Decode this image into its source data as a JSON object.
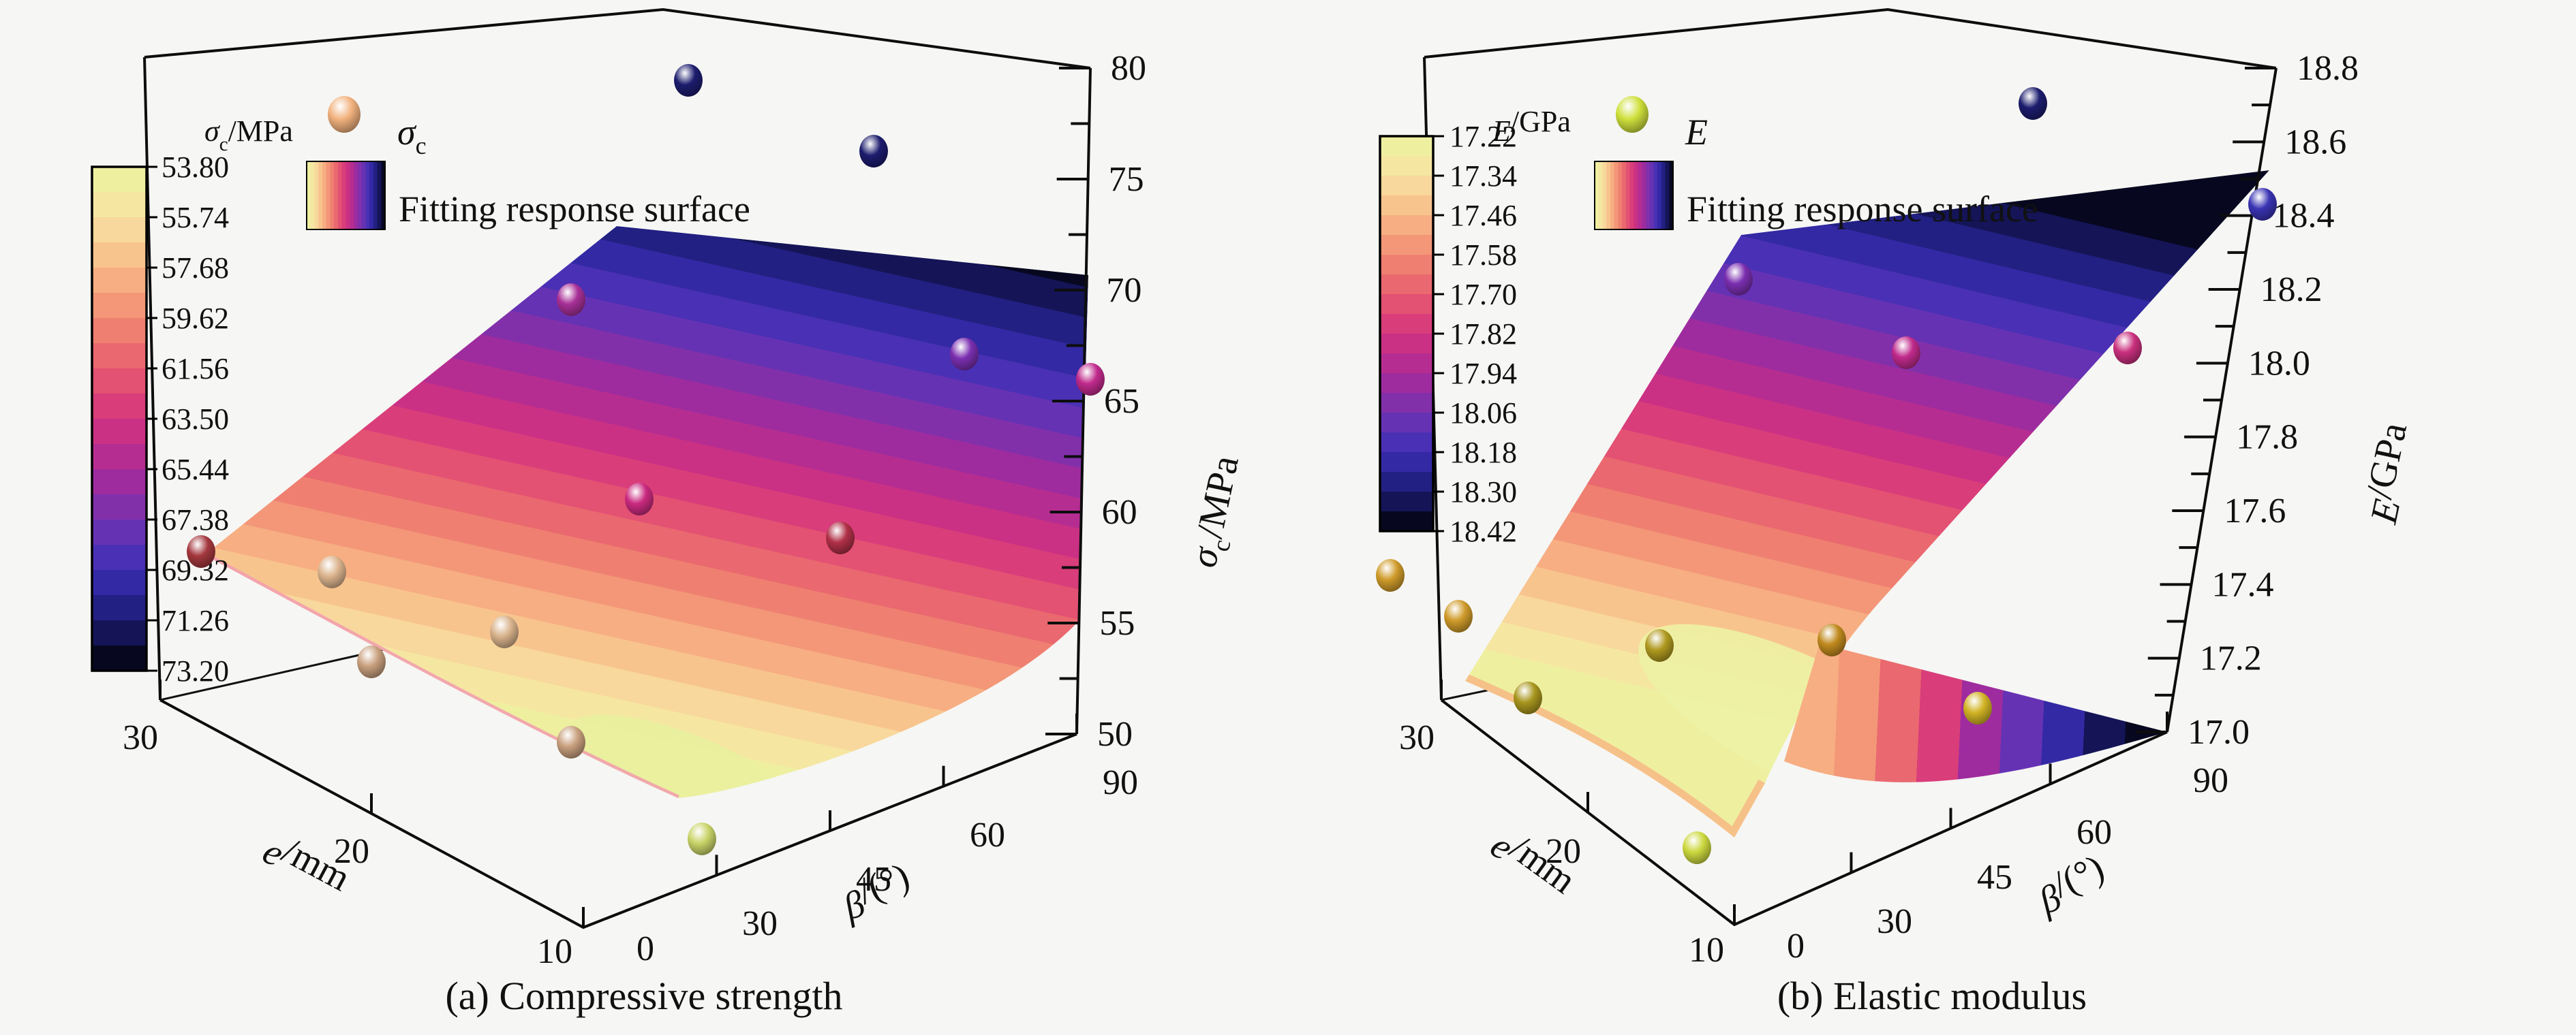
{
  "figure": {
    "background": "#f6f6f4"
  },
  "panels": [
    {
      "caption": "(a) Compressive strength",
      "legend": {
        "scatter_sym": "σ",
        "scatter_sub": "c",
        "fit_label": "Fitting response surface"
      },
      "axes": {
        "z": {
          "sym": "σ",
          "sub": "c",
          "unit": "/MPa",
          "ticks": [
            "50",
            "55",
            "60",
            "65",
            "70",
            "75",
            "80"
          ]
        },
        "beta": {
          "sym": "β",
          "unit": "/(°)",
          "ticks": [
            "0",
            "30",
            "45",
            "60",
            "90"
          ]
        },
        "e": {
          "sym": "e",
          "unit": "/mm",
          "ticks": [
            "30",
            "20",
            "10"
          ]
        }
      },
      "colorbar": {
        "labels": [
          "53.80",
          "55.74",
          "57.68",
          "59.62",
          "61.56",
          "63.50",
          "65.44",
          "67.38",
          "69.32",
          "71.26",
          "73.20"
        ]
      },
      "chart_data": {
        "type": "3d-surface-with-scatter",
        "x_beta_deg_ticks": [
          0,
          30,
          45,
          60,
          90
        ],
        "y_e_mm_ticks": [
          30,
          20,
          10
        ],
        "z_label": "σc/MPa",
        "z_range": [
          50,
          80
        ],
        "surface": {
          "name": "Fitting response surface",
          "z_min": 53.8,
          "z_max": 73.2,
          "color_levels": [
            53.8,
            55.74,
            57.68,
            59.62,
            61.56,
            63.5,
            65.44,
            67.38,
            69.32,
            71.26,
            73.2
          ],
          "shape": "valley surface: minimum ~53.8 MPa near low-mid bedding angle at front (e=10mm), rising to ~73.2 MPa (black) at beta=90"
        },
        "scatter": {
          "name": "sigma-c measured points",
          "points": [
            {
              "z_est": 69.3,
              "screen": [
                1010,
                118
              ],
              "color": "#1c1c6e"
            },
            {
              "z_est": 68.1,
              "screen": [
                1282,
                222
              ],
              "color": "#1c1c6e"
            },
            {
              "z_est": 63.4,
              "screen": [
                838,
                440
              ],
              "color": "#a83098"
            },
            {
              "z_est": 65.4,
              "screen": [
                1415,
                520
              ],
              "color": "#7b2fb0"
            },
            {
              "z_est": 66.0,
              "screen": [
                1600,
                557
              ],
              "color": "#c02a8c"
            },
            {
              "z_est": 63.5,
              "screen": [
                938,
                733
              ],
              "color": "#cb2a80"
            },
            {
              "z_est": 59.8,
              "screen": [
                1233,
                790
              ],
              "color": "#b03048"
            },
            {
              "z_est": 58.4,
              "screen": [
                295,
                810
              ],
              "color": "#a4383e"
            },
            {
              "z_est": 56.5,
              "screen": [
                487,
                840
              ],
              "color": "#dcb48e"
            },
            {
              "z_est": 55.8,
              "screen": [
                740,
                928
              ],
              "color": "#d9b38c"
            },
            {
              "z_est": 55.2,
              "screen": [
                545,
                972
              ],
              "color": "#c9a07e"
            },
            {
              "z_est": 54.6,
              "screen": [
                838,
                1090
              ],
              "color": "#c9a07e"
            },
            {
              "z_est": 53.8,
              "screen": [
                1030,
                1232
              ],
              "color": "#c9d468"
            }
          ]
        }
      }
    },
    {
      "caption": "(b) Elastic modulus",
      "legend": {
        "scatter_sym": "E",
        "scatter_sub": "",
        "fit_label": "Fitting response surface"
      },
      "axes": {
        "z": {
          "sym": "E",
          "sub": "",
          "unit": "/GPa",
          "ticks": [
            "17.0",
            "17.2",
            "17.4",
            "17.6",
            "17.8",
            "18.0",
            "18.2",
            "18.4",
            "18.6",
            "18.8"
          ]
        },
        "beta": {
          "sym": "β",
          "unit": "/(°)",
          "ticks": [
            "0",
            "30",
            "45",
            "60",
            "90"
          ]
        },
        "e": {
          "sym": "e",
          "unit": "/mm",
          "ticks": [
            "30",
            "20",
            "10"
          ]
        }
      },
      "colorbar": {
        "labels": [
          "17.22",
          "17.34",
          "17.46",
          "17.58",
          "17.70",
          "17.82",
          "17.94",
          "18.06",
          "18.18",
          "18.30",
          "18.42"
        ]
      },
      "chart_data": {
        "type": "3d-surface-with-scatter",
        "x_beta_deg_ticks": [
          0,
          30,
          45,
          60,
          90
        ],
        "y_e_mm_ticks": [
          30,
          20,
          10
        ],
        "z_label": "E/GPa",
        "z_range": [
          17.0,
          18.8
        ],
        "surface": {
          "name": "Fitting response surface",
          "z_min": 17.22,
          "z_max": 18.42,
          "color_levels": [
            17.22,
            17.34,
            17.46,
            17.58,
            17.7,
            17.82,
            17.94,
            18.06,
            18.18,
            18.3,
            18.42
          ],
          "shape": "nearly flat low plateau ~17.2-17.4 GPa at low beta, rising steeply to ~18.42 GPa (black) at beta=90"
        },
        "scatter": {
          "name": "E measured points",
          "points": [
            {
              "z_est": 18.7,
              "screen": [
                1093,
                152
              ],
              "color": "#1c1c6e"
            },
            {
              "z_est": 18.1,
              "screen": [
                661,
                410
              ],
              "color": "#7b2fb0"
            },
            {
              "z_est": 18.31,
              "screen": [
                1430,
                300
              ],
              "color": "#3a34b4"
            },
            {
              "z_est": 18.05,
              "screen": [
                907,
                518
              ],
              "color": "#c02a8c"
            },
            {
              "z_est": 18.0,
              "screen": [
                1232,
                511
              ],
              "color": "#c9307e"
            },
            {
              "z_est": 17.45,
              "screen": [
                150,
                845
              ],
              "color": "#cf9b2a"
            },
            {
              "z_est": 17.4,
              "screen": [
                250,
                905
              ],
              "color": "#cf9b2a"
            },
            {
              "z_est": 17.35,
              "screen": [
                545,
                948
              ],
              "color": "#b09a20"
            },
            {
              "z_est": 17.38,
              "screen": [
                798,
                940
              ],
              "color": "#c08a1e"
            },
            {
              "z_est": 17.3,
              "screen": [
                352,
                1025
              ],
              "color": "#a8961e"
            },
            {
              "z_est": 17.33,
              "screen": [
                1012,
                1040
              ],
              "color": "#d2b425"
            },
            {
              "z_est": 17.22,
              "screen": [
                600,
                1245
              ],
              "color": "#ccd83e"
            }
          ]
        }
      }
    }
  ]
}
